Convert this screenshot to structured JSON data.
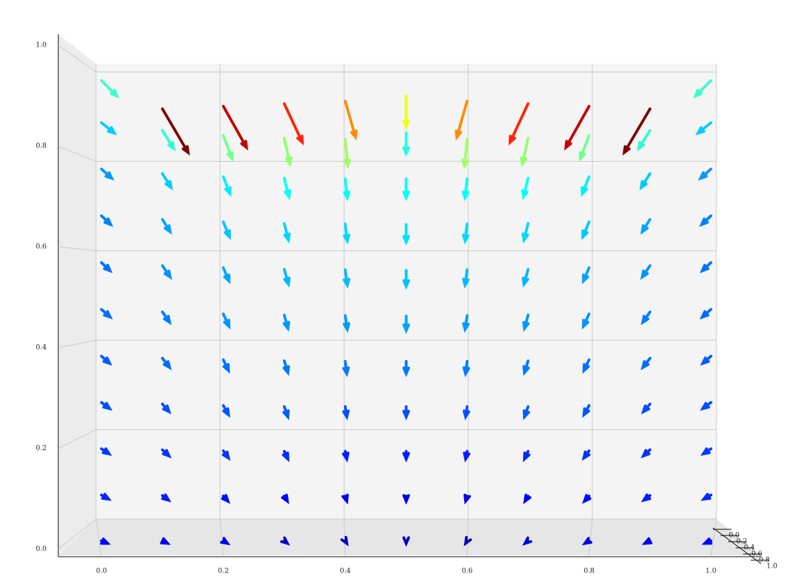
{
  "chart_data": {
    "type": "quiver3d",
    "x": [
      0,
      0.1,
      0.2,
      0.3,
      0.4,
      0.5,
      0.6,
      0.7,
      0.8,
      0.9,
      1
    ],
    "z": [
      0,
      0.1,
      0.2,
      0.3,
      0.4,
      0.5,
      0.6,
      0.7,
      0.8,
      0.9,
      1
    ],
    "u": [
      [
        0.12,
        0.1,
        0.08,
        0.06,
        0.03,
        0,
        -0.03,
        -0.06,
        -0.08,
        -0.1,
        -0.12
      ],
      [
        0.14,
        0.12,
        0.09,
        0.06,
        0.03,
        0,
        -0.03,
        -0.06,
        -0.09,
        -0.12,
        -0.14
      ],
      [
        0.15,
        0.13,
        0.1,
        0.07,
        0.03,
        0,
        -0.03,
        -0.07,
        -0.1,
        -0.13,
        -0.15
      ],
      [
        0.16,
        0.13,
        0.1,
        0.07,
        0.03,
        0,
        -0.03,
        -0.07,
        -0.1,
        -0.13,
        -0.16
      ],
      [
        0.16,
        0.14,
        0.1,
        0.07,
        0.03,
        0,
        -0.03,
        -0.07,
        -0.1,
        -0.14,
        -0.16
      ],
      [
        0.17,
        0.14,
        0.11,
        0.07,
        0.04,
        0,
        -0.04,
        -0.07,
        -0.11,
        -0.14,
        -0.17
      ],
      [
        0.17,
        0.15,
        0.11,
        0.08,
        0.04,
        0,
        -0.04,
        -0.08,
        -0.11,
        -0.15,
        -0.17
      ],
      [
        0.18,
        0.15,
        0.12,
        0.08,
        0.04,
        0,
        -0.04,
        -0.08,
        -0.12,
        -0.15,
        -0.18
      ],
      [
        0.2,
        0.17,
        0.13,
        0.09,
        0.04,
        0,
        -0.04,
        -0.09,
        -0.13,
        -0.17,
        -0.2
      ],
      [
        0.25,
        0.22,
        0.17,
        0.11,
        0.05,
        0,
        -0.05,
        -0.11,
        -0.17,
        -0.22,
        -0.25
      ],
      [
        0.3,
        0.5,
        0.45,
        0.35,
        0.2,
        0,
        -0.2,
        -0.35,
        -0.45,
        -0.5,
        -0.3
      ]
    ],
    "w": [
      [
        -0.05,
        -0.05,
        -0.05,
        -0.05,
        -0.05,
        -0.05,
        -0.05,
        -0.05,
        -0.05,
        -0.05,
        -0.05
      ],
      [
        -0.08,
        -0.09,
        -0.1,
        -0.1,
        -0.1,
        -0.1,
        -0.1,
        -0.1,
        -0.1,
        -0.09,
        -0.08
      ],
      [
        -0.1,
        -0.12,
        -0.14,
        -0.15,
        -0.15,
        -0.15,
        -0.15,
        -0.15,
        -0.14,
        -0.12,
        -0.1
      ],
      [
        -0.12,
        -0.15,
        -0.18,
        -0.2,
        -0.2,
        -0.2,
        -0.2,
        -0.2,
        -0.18,
        -0.15,
        -0.12
      ],
      [
        -0.14,
        -0.18,
        -0.21,
        -0.23,
        -0.24,
        -0.24,
        -0.24,
        -0.23,
        -0.21,
        -0.18,
        -0.14
      ],
      [
        -0.15,
        -0.2,
        -0.24,
        -0.26,
        -0.27,
        -0.28,
        -0.27,
        -0.26,
        -0.24,
        -0.2,
        -0.15
      ],
      [
        -0.16,
        -0.22,
        -0.26,
        -0.29,
        -0.3,
        -0.31,
        -0.3,
        -0.29,
        -0.26,
        -0.22,
        -0.16
      ],
      [
        -0.17,
        -0.24,
        -0.29,
        -0.32,
        -0.33,
        -0.34,
        -0.33,
        -0.32,
        -0.29,
        -0.24,
        -0.17
      ],
      [
        -0.18,
        -0.27,
        -0.33,
        -0.36,
        -0.37,
        -0.37,
        -0.37,
        -0.36,
        -0.33,
        -0.27,
        -0.18
      ],
      [
        -0.2,
        -0.35,
        -0.45,
        -0.5,
        -0.52,
        -0.4,
        -0.52,
        -0.5,
        -0.45,
        -0.35,
        -0.2
      ],
      [
        -0.3,
        -0.85,
        -0.8,
        -0.75,
        -0.7,
        -0.6,
        -0.7,
        -0.75,
        -0.8,
        -0.85,
        -0.3
      ]
    ],
    "xlim": [
      0,
      1
    ],
    "xticks": [
      {
        "value": 0,
        "label": "0.0"
      },
      0.2,
      0.4,
      0.6,
      0.8,
      {
        "value": 1,
        "label": "1.0"
      }
    ],
    "ylim": [
      0,
      1
    ],
    "yticks": [
      {
        "value": 0,
        "label": "0.0"
      },
      0.2,
      0.4,
      0.6,
      0.8,
      {
        "value": 1,
        "label": "1.0"
      }
    ],
    "zlim": [
      0,
      1
    ],
    "zticks": [
      {
        "value": 0,
        "label": "0.0"
      },
      0.2,
      0.4,
      0.6,
      0.8,
      {
        "value": 1,
        "label": "1.0"
      }
    ],
    "colormap": "jet",
    "grid": true
  }
}
